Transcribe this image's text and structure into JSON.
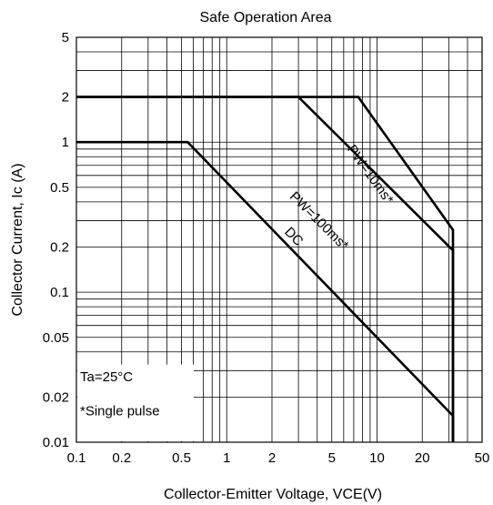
{
  "chart_data": {
    "type": "line",
    "title": "Safe Operation Area",
    "xlabel": "Collector-Emitter Voltage, VCE(V)",
    "ylabel": "Collector Current, Ic (A)",
    "x_scale": "log",
    "y_scale": "log",
    "xlim": [
      0.1,
      50
    ],
    "ylim": [
      0.01,
      5
    ],
    "x_ticks": [
      0.1,
      0.2,
      0.5,
      1,
      2,
      5,
      10,
      20,
      50
    ],
    "x_tick_labels": [
      "0.1",
      "0.2",
      "0.5",
      "1",
      "2",
      "5",
      "10",
      "20",
      "50"
    ],
    "y_ticks": [
      0.01,
      0.02,
      0.05,
      0.1,
      0.2,
      0.5,
      1,
      2,
      5
    ],
    "y_tick_labels": [
      "0.01",
      "0.02",
      "0.05",
      "0.1",
      "0.2",
      "0.5",
      "1",
      "2",
      "5"
    ],
    "grid": true,
    "series": [
      {
        "name": "PW=10ms*",
        "x": [
          0.1,
          7.5,
          32,
          32
        ],
        "y": [
          2,
          2,
          0.26,
          0.01
        ]
      },
      {
        "name": "PW=100ms*",
        "x": [
          0.1,
          3.0,
          32,
          32
        ],
        "y": [
          2,
          2,
          0.19,
          0.01
        ]
      },
      {
        "name": "DC",
        "x": [
          0.1,
          0.55,
          32,
          32
        ],
        "y": [
          1,
          1,
          0.015,
          0.01
        ]
      }
    ],
    "annotations": [
      "Ta=25°C",
      "*Single pulse"
    ]
  }
}
